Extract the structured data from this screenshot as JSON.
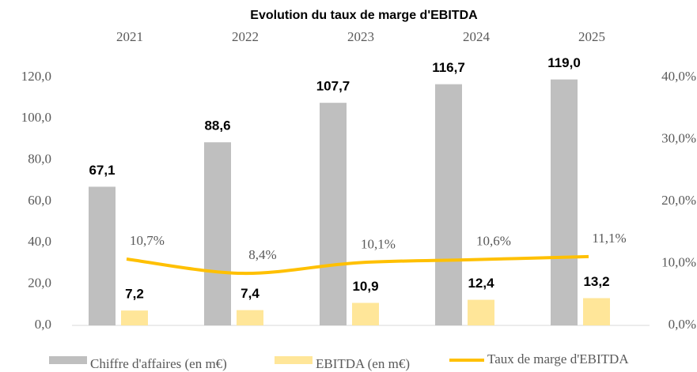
{
  "chart_data": {
    "type": "bar",
    "title": "Evolution du taux de marge d'EBITDA",
    "categories": [
      "2021",
      "2022",
      "2023",
      "2024",
      "2025"
    ],
    "series": [
      {
        "name": "Chiffre d'affaires (en m€)",
        "color": "#bfbfbf",
        "values": [
          67.1,
          88.6,
          107.7,
          116.7,
          119.0
        ],
        "value_labels": [
          "67,1",
          "88,6",
          "107,7",
          "116,7",
          "119,0"
        ]
      },
      {
        "name": "EBITDA (en m€)",
        "color": "#ffe699",
        "values": [
          7.2,
          7.4,
          10.9,
          12.4,
          13.2
        ],
        "value_labels": [
          "7,2",
          "7,4",
          "10,9",
          "12,4",
          "13,2"
        ]
      },
      {
        "name": "Taux de marge d'EBITDA",
        "type": "line",
        "axis": "y2",
        "color": "#ffc000",
        "values": [
          10.7,
          8.4,
          10.1,
          10.6,
          11.1
        ],
        "value_labels": [
          "10,7%",
          "8,4%",
          "10,1%",
          "10,6%",
          "11,1%"
        ]
      }
    ],
    "ylim": [
      0,
      120
    ],
    "yticks": [
      {
        "value": 0,
        "label": "0,0"
      },
      {
        "value": 20,
        "label": "20,0"
      },
      {
        "value": 40,
        "label": "40,0"
      },
      {
        "value": 60,
        "label": "60,0"
      },
      {
        "value": 80,
        "label": "80,0"
      },
      {
        "value": 100,
        "label": "100,0"
      },
      {
        "value": 120,
        "label": "120,0"
      }
    ],
    "y2lim": [
      0,
      40
    ],
    "y2ticks": [
      {
        "value": 0,
        "label": "0,0%"
      },
      {
        "value": 10,
        "label": "10,0%"
      },
      {
        "value": 20,
        "label": "20,0%"
      },
      {
        "value": 30,
        "label": "30,0%"
      },
      {
        "value": 40,
        "label": "40,0%"
      }
    ],
    "grid": false
  }
}
